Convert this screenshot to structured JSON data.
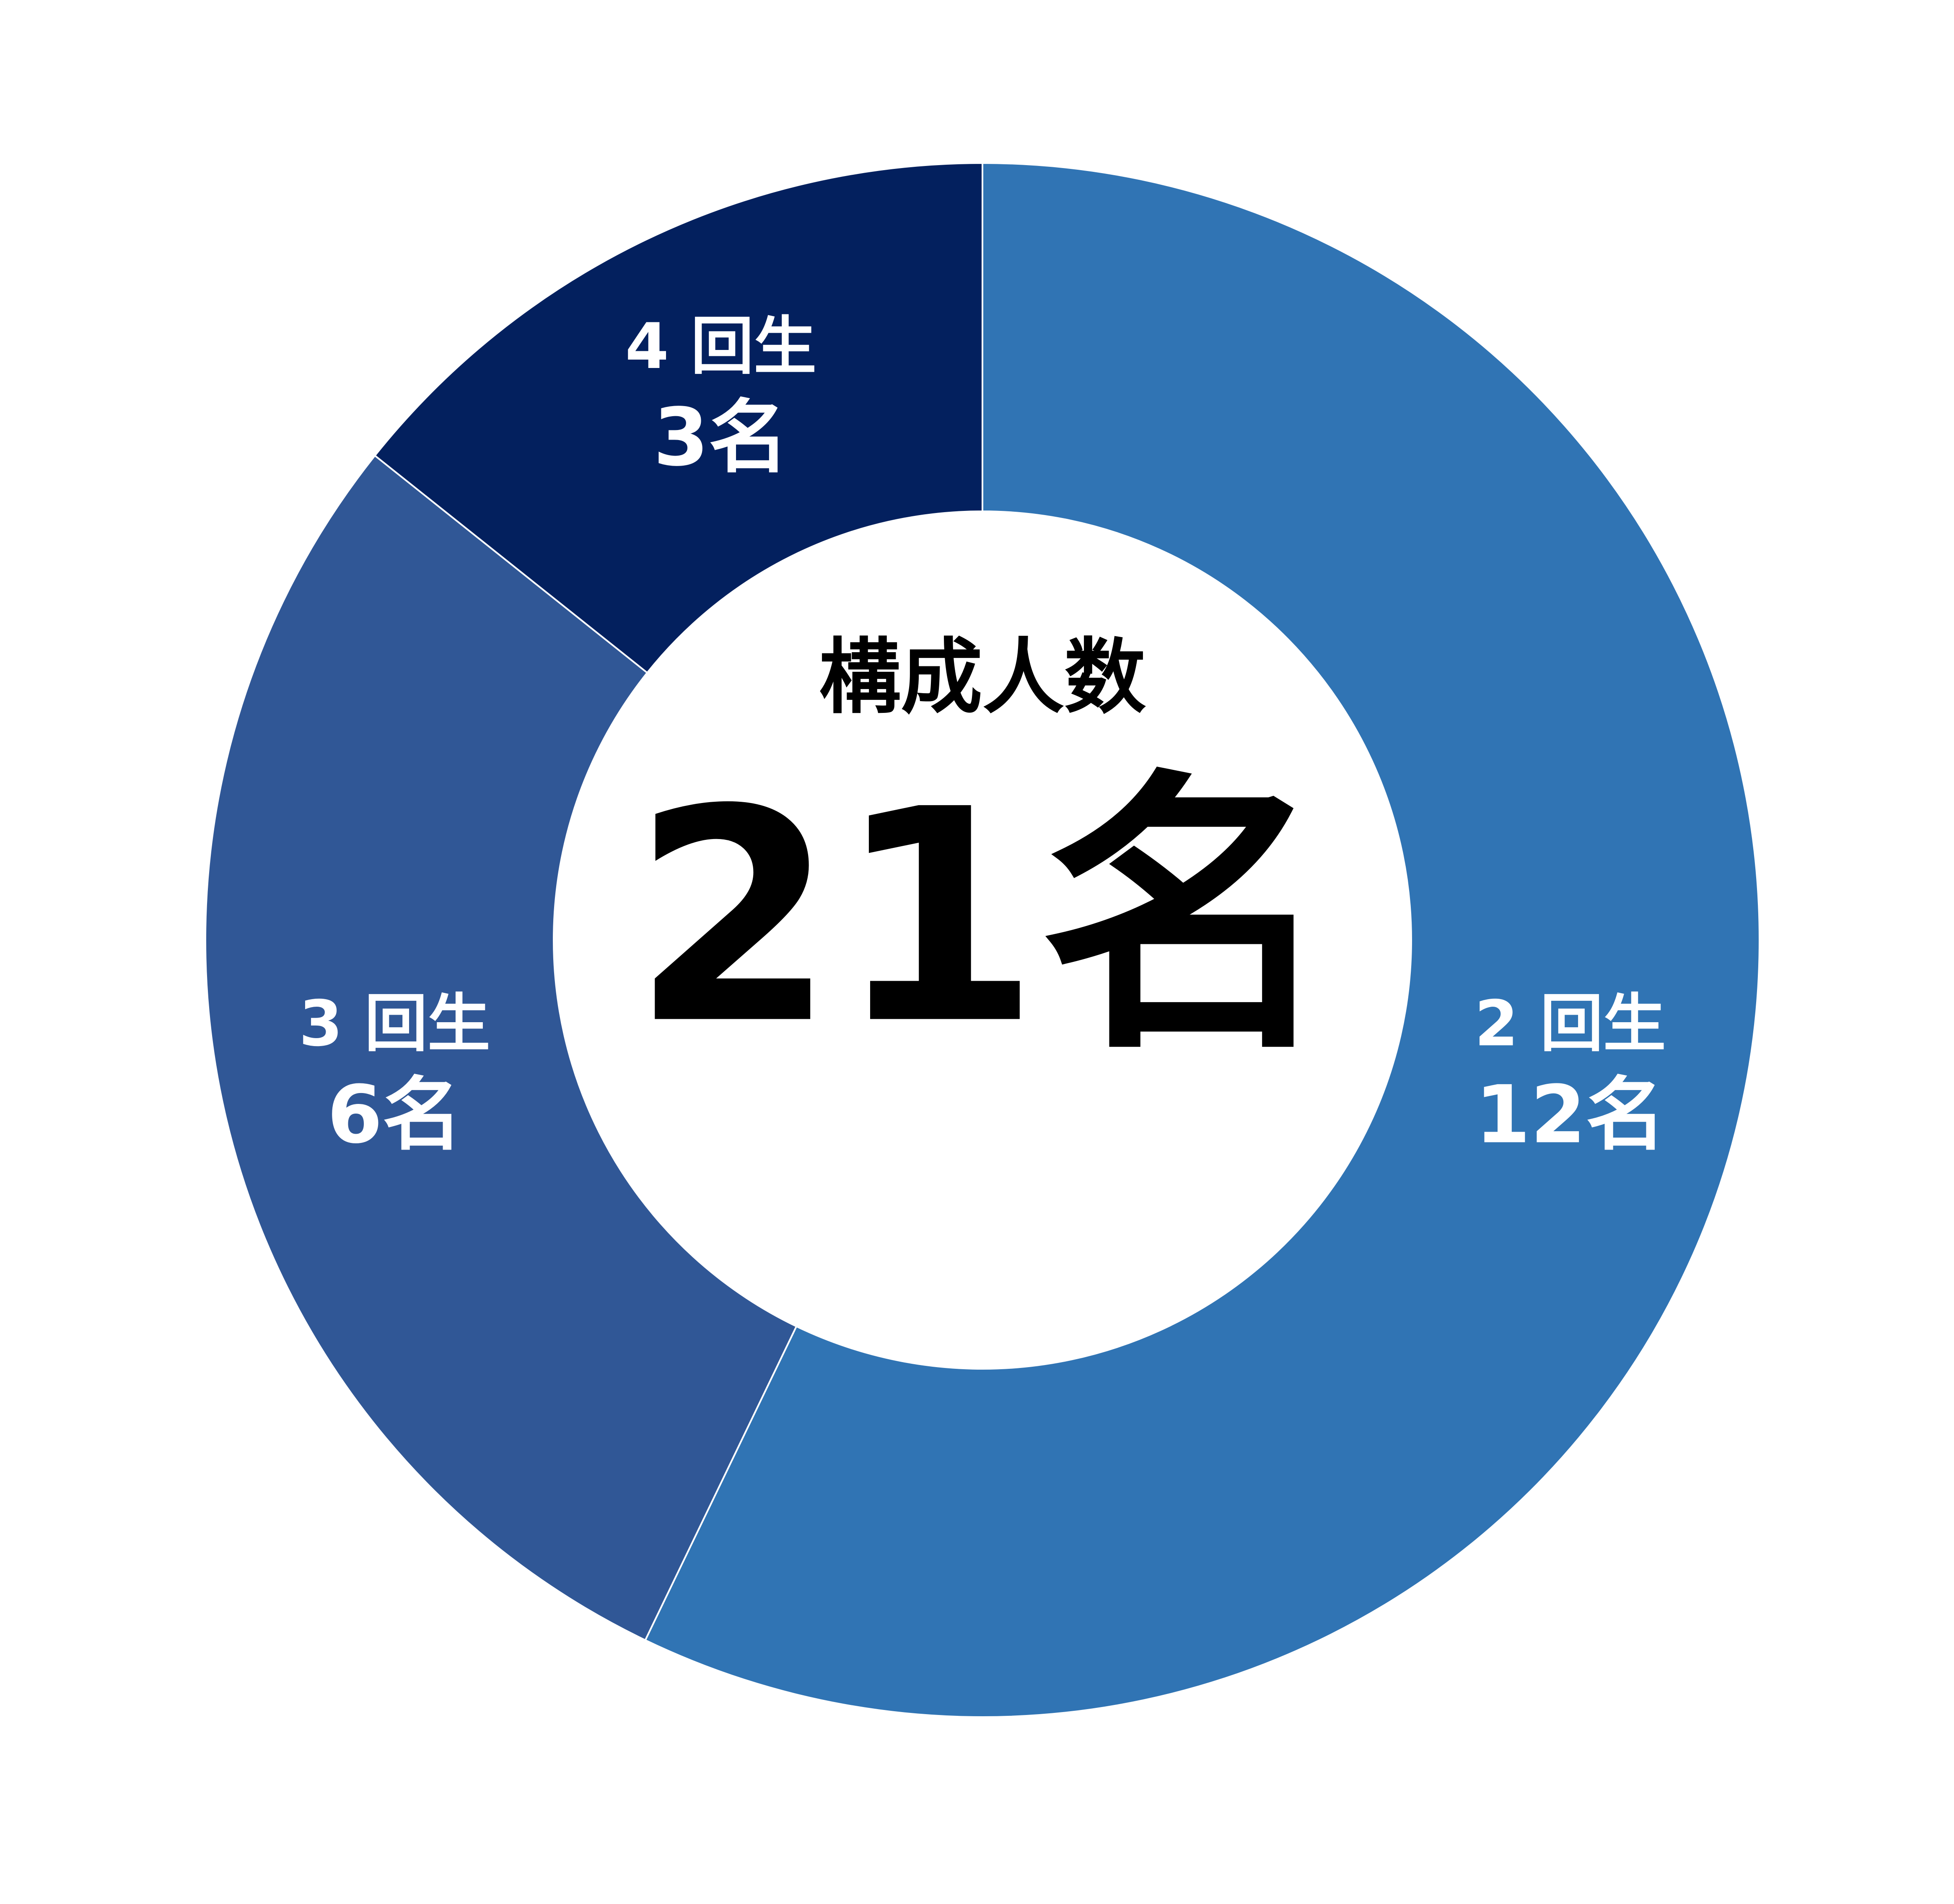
{
  "chart_data": {
    "type": "donut",
    "center_title": "構成人数",
    "center_label": "21名",
    "categories": [
      "2 回生",
      "3 回生",
      "4 回生"
    ],
    "values": [
      12,
      6,
      3
    ],
    "value_labels": [
      "12名",
      "6名",
      "3名"
    ],
    "colors": [
      "#3074b4",
      "#305796",
      "#03205e"
    ]
  }
}
